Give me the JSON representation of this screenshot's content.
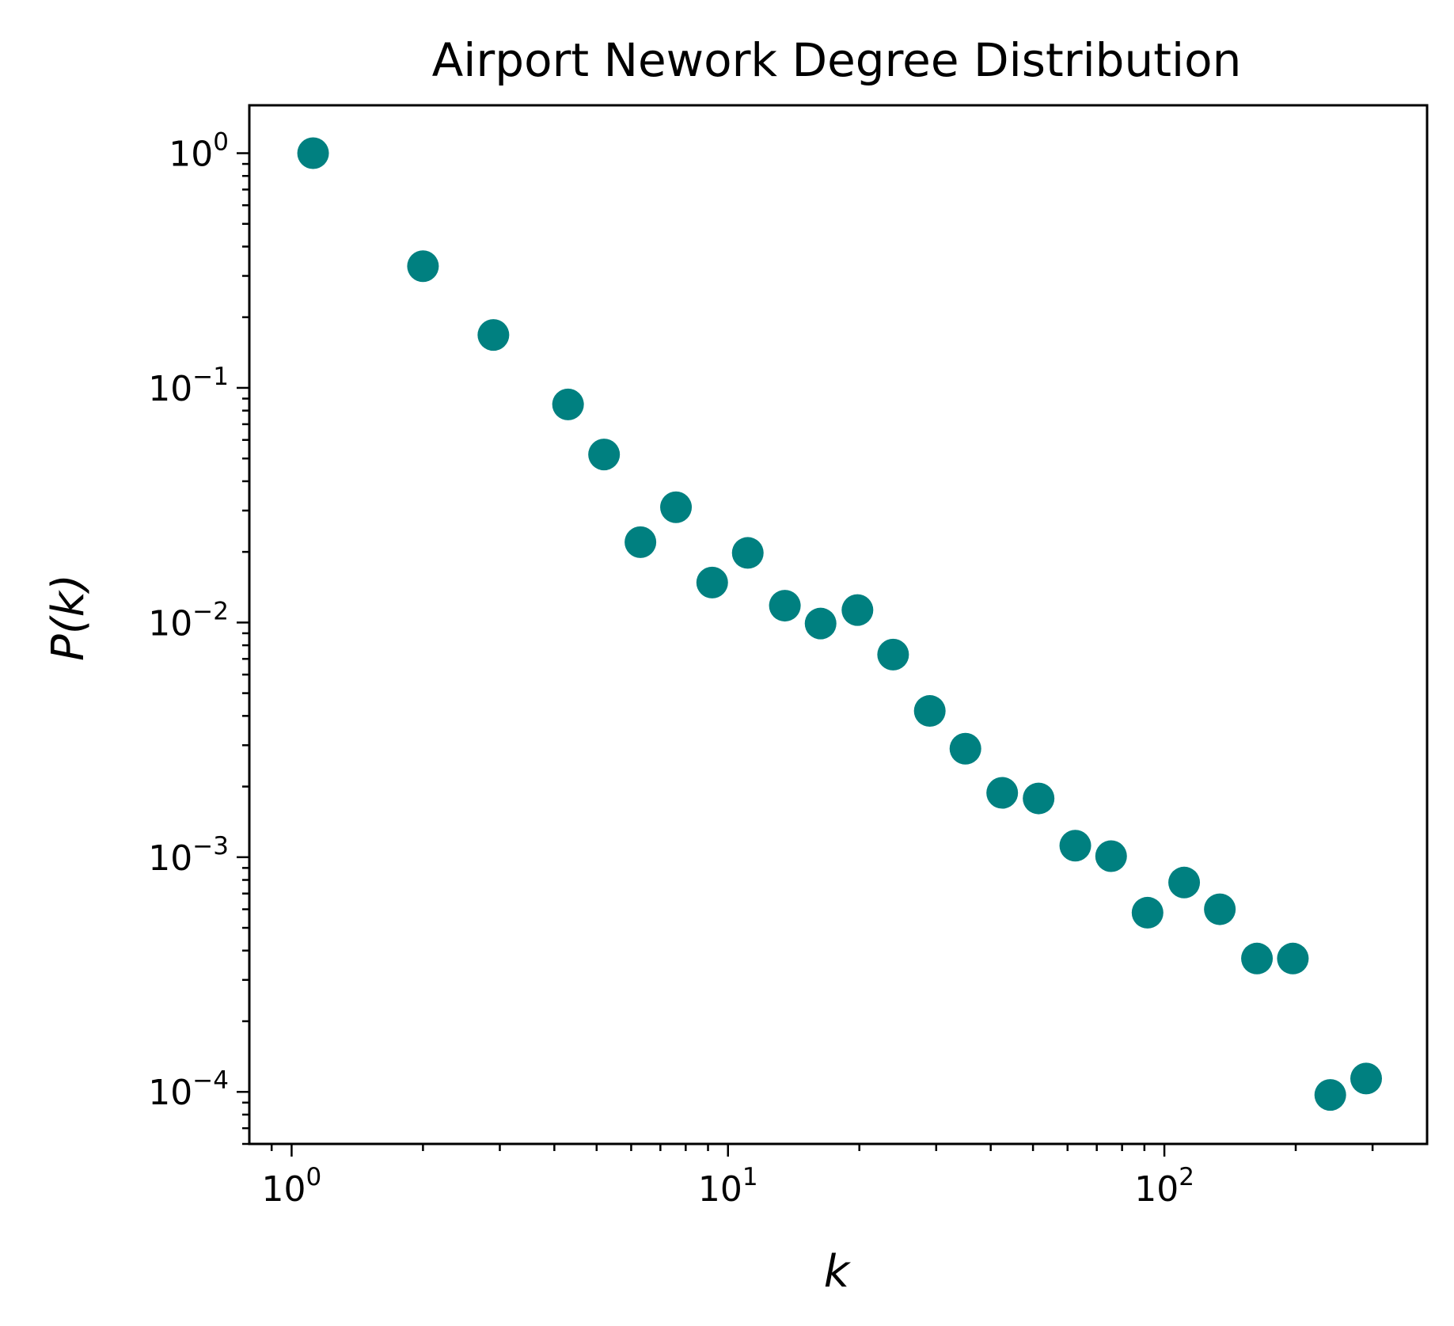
{
  "chart_data": {
    "type": "scatter",
    "title": "Airport Nework Degree Distribution",
    "xlabel": "k",
    "ylabel": "P(k)",
    "xscale": "log",
    "yscale": "log",
    "xlim": [
      0.8,
      400
    ],
    "ylim": [
      6e-05,
      1.6
    ],
    "grid": false,
    "marker_color": "#008080",
    "x_ticks": [
      {
        "value": 1,
        "base": "10",
        "exp": "0"
      },
      {
        "value": 10,
        "base": "10",
        "exp": "1"
      },
      {
        "value": 100,
        "base": "10",
        "exp": "2"
      }
    ],
    "y_ticks": [
      {
        "value": 1,
        "base": "10",
        "exp": "0"
      },
      {
        "value": 0.1,
        "base": "10",
        "exp": "−1"
      },
      {
        "value": 0.01,
        "base": "10",
        "exp": "−2"
      },
      {
        "value": 0.001,
        "base": "10",
        "exp": "−3"
      },
      {
        "value": 0.0001,
        "base": "10",
        "exp": "−4"
      }
    ],
    "points": [
      {
        "x": 1.12,
        "y": 1.0
      },
      {
        "x": 2.0,
        "y": 0.33
      },
      {
        "x": 2.9,
        "y": 0.168
      },
      {
        "x": 4.3,
        "y": 0.085
      },
      {
        "x": 5.2,
        "y": 0.052
      },
      {
        "x": 6.3,
        "y": 0.022
      },
      {
        "x": 7.6,
        "y": 0.031
      },
      {
        "x": 9.2,
        "y": 0.0148
      },
      {
        "x": 11.1,
        "y": 0.0198
      },
      {
        "x": 13.5,
        "y": 0.0118
      },
      {
        "x": 16.3,
        "y": 0.0099
      },
      {
        "x": 19.8,
        "y": 0.0113
      },
      {
        "x": 23.9,
        "y": 0.0073
      },
      {
        "x": 29.0,
        "y": 0.0042
      },
      {
        "x": 35.0,
        "y": 0.0029
      },
      {
        "x": 42.5,
        "y": 0.00188
      },
      {
        "x": 51.5,
        "y": 0.00178
      },
      {
        "x": 62.5,
        "y": 0.00112
      },
      {
        "x": 75.5,
        "y": 0.00101
      },
      {
        "x": 91.5,
        "y": 0.00058
      },
      {
        "x": 111,
        "y": 0.00078
      },
      {
        "x": 134,
        "y": 0.0006
      },
      {
        "x": 163,
        "y": 0.00037
      },
      {
        "x": 197,
        "y": 0.00037
      },
      {
        "x": 240,
        "y": 9.7e-05
      },
      {
        "x": 290,
        "y": 0.000114
      }
    ]
  }
}
